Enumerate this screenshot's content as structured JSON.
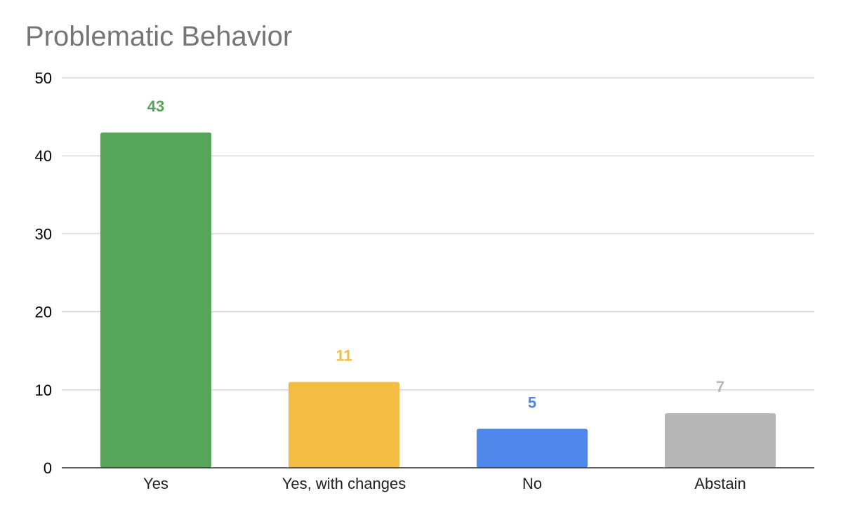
{
  "chart_data": {
    "type": "bar",
    "title": "Problematic Behavior",
    "categories": [
      "Yes",
      "Yes, with changes",
      "No",
      "Abstain"
    ],
    "values": [
      43,
      11,
      5,
      7
    ],
    "data_labels": [
      "43",
      "11",
      "5",
      "7"
    ],
    "colors": [
      "#57a55a",
      "#f2bd42",
      "#4e86ea",
      "#b7b7b7"
    ],
    "ylim": [
      0,
      50
    ],
    "yticks": [
      0,
      10,
      20,
      30,
      40,
      50
    ],
    "ytick_labels": [
      "0",
      "10",
      "20",
      "30",
      "40",
      "50"
    ],
    "xlabel": "",
    "ylabel": "",
    "grid": true,
    "legend": "none"
  }
}
